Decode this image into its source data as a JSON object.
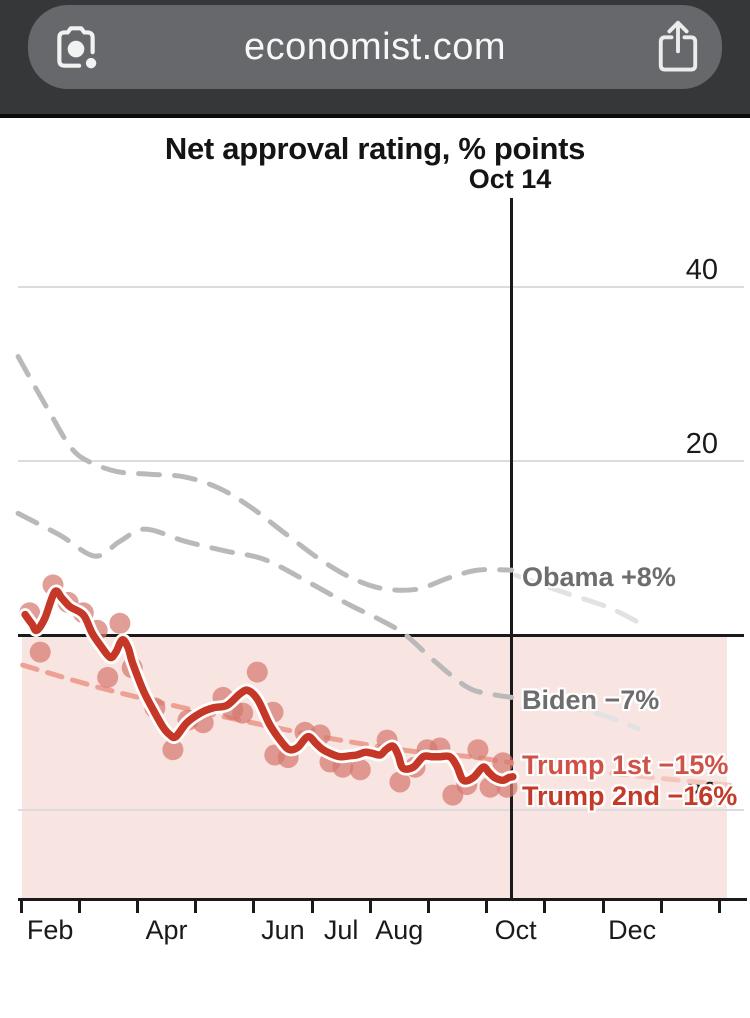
{
  "browser": {
    "url": "economist.com",
    "lens_icon": "google-lens-camera",
    "share_icon": "ios-share"
  },
  "chart": {
    "annotations": {
      "obama": {
        "text": "Obama +8%",
        "color": "#6d6d6d"
      },
      "biden": {
        "text": "Biden −7%",
        "color": "#6d6d6d"
      },
      "trump1": {
        "text": "Trump 1st −15%",
        "color": "#d05145"
      },
      "trump2": {
        "text": "Trump 2nd −16%",
        "color": "#c33a28"
      }
    },
    "colors": {
      "negative_region": "#f8e4e1",
      "gridline": "#dcdcdc",
      "axis": "#1a1a1a"
    }
  },
  "chart_data": {
    "type": "line",
    "title": "Net approval rating, % points",
    "annotation_vline": {
      "label": "Oct 14",
      "x_month": 10.43
    },
    "x_axis": {
      "unit": "month of first year in office (1 = Jan 1)",
      "range": [
        1.95,
        14.4
      ],
      "month_tick_xs": [
        2,
        3,
        4,
        5,
        6,
        7,
        8,
        9,
        10,
        11,
        12,
        13,
        14
      ],
      "labels": [
        [
          "Feb",
          2.5
        ],
        [
          "Apr",
          4.5
        ],
        [
          "Jun",
          6.5
        ],
        [
          "Jul",
          7.5
        ],
        [
          "Aug",
          8.5
        ],
        [
          "Oct",
          10.5
        ],
        [
          "Dec",
          12.5
        ]
      ]
    },
    "y_axis": {
      "unit": "net approval, % points",
      "range": [
        -30,
        50
      ],
      "gridlines": [
        40,
        20,
        -20
      ],
      "zero_line": 0,
      "tick_labels": [
        {
          "value": 40,
          "text": "40",
          "hidden": false
        },
        {
          "value": 20,
          "text": "20",
          "hidden": false
        },
        {
          "value": -20,
          "text": "20",
          "hidden": true,
          "note": "minus sign occluded by Trump 2nd label"
        }
      ],
      "negative_region_shaded": true
    },
    "series": [
      {
        "name": "obama-line",
        "label": "Obama",
        "final_value": 8,
        "style": "dashed",
        "color": "#b9b9b9",
        "points": [
          [
            1.95,
            32
          ],
          [
            2.2,
            29
          ],
          [
            2.5,
            25.5
          ],
          [
            2.85,
            21.6
          ],
          [
            3.15,
            20
          ],
          [
            3.65,
            18.8
          ],
          [
            4.2,
            18.5
          ],
          [
            4.8,
            18.2
          ],
          [
            5.4,
            16.9
          ],
          [
            5.95,
            14.7
          ],
          [
            6.5,
            11.9
          ],
          [
            7.1,
            8.9
          ],
          [
            7.65,
            6.7
          ],
          [
            8.2,
            5.4
          ],
          [
            8.8,
            5.3
          ],
          [
            9.35,
            6.6
          ],
          [
            9.85,
            7.5
          ],
          [
            10.43,
            7.5
          ]
        ]
      },
      {
        "name": "obama-line-after-oct14",
        "label": "Obama (rest of term)",
        "style": "dashed-faded",
        "color": "#e2e2e2",
        "points": [
          [
            10.5,
            6.9
          ],
          [
            11.3,
            5.0
          ],
          [
            12.1,
            3.2
          ],
          [
            12.75,
            1.0
          ]
        ]
      },
      {
        "name": "biden-line",
        "label": "Biden",
        "final_value": -7,
        "style": "dashed",
        "color": "#b9b9b9",
        "points": [
          [
            1.95,
            14.0
          ],
          [
            2.67,
            11.5
          ],
          [
            3.27,
            9.1
          ],
          [
            3.7,
            10.8
          ],
          [
            4.13,
            12.2
          ],
          [
            4.82,
            10.8
          ],
          [
            5.51,
            9.7
          ],
          [
            6.19,
            8.7
          ],
          [
            6.97,
            6.0
          ],
          [
            7.65,
            3.5
          ],
          [
            8.17,
            1.8
          ],
          [
            8.6,
            0.1
          ],
          [
            9.08,
            -2.8
          ],
          [
            9.66,
            -5.9
          ],
          [
            10.06,
            -6.7
          ],
          [
            10.43,
            -7.1
          ]
        ]
      },
      {
        "name": "biden-line-after-oct14",
        "label": "Biden (rest of term)",
        "style": "dashed-faded",
        "color": "#e2e2e2",
        "points": [
          [
            10.66,
            -7.4
          ],
          [
            11.43,
            -8.2
          ],
          [
            12.03,
            -9.2
          ],
          [
            12.6,
            -10.7
          ]
        ]
      },
      {
        "name": "trump1-line",
        "label": "Trump 1st",
        "final_value": -15,
        "style": "dashed-light",
        "color": "#eda094",
        "points": [
          [
            2.03,
            -3.4
          ],
          [
            3.36,
            -6.0
          ],
          [
            4.73,
            -8.2
          ],
          [
            6.11,
            -10.2
          ],
          [
            7.48,
            -12.0
          ],
          [
            8.86,
            -13.4
          ],
          [
            9.71,
            -13.9
          ],
          [
            10.43,
            -14.6
          ]
        ]
      },
      {
        "name": "trump1-line-after-oct14",
        "label": "Trump 1st (rest of term)",
        "style": "dashed-light-faded",
        "color": "#f4c6bd",
        "points": [
          [
            11.26,
            -15.2
          ],
          [
            12.29,
            -15.9
          ],
          [
            13.32,
            -16.6
          ],
          [
            14.35,
            -17.3
          ]
        ]
      },
      {
        "name": "trump2-poll-dots",
        "label": "Trump 2nd individual polls",
        "style": "scatter",
        "color": "#d6796f",
        "points": [
          [
            2.15,
            2.6
          ],
          [
            2.33,
            -1.9
          ],
          [
            2.55,
            5.8
          ],
          [
            2.81,
            3.8
          ],
          [
            3.07,
            2.6
          ],
          [
            3.31,
            0.6
          ],
          [
            3.49,
            -4.8
          ],
          [
            3.7,
            1.4
          ],
          [
            3.91,
            -3.7
          ],
          [
            4.3,
            -8.3
          ],
          [
            4.61,
            -13.1
          ],
          [
            4.87,
            -9.7
          ],
          [
            5.13,
            -10.0
          ],
          [
            5.47,
            -7.1
          ],
          [
            5.64,
            -8.5
          ],
          [
            5.81,
            -8.9
          ],
          [
            6.06,
            -4.2
          ],
          [
            6.33,
            -8.8
          ],
          [
            6.36,
            -13.7
          ],
          [
            6.59,
            -14.0
          ],
          [
            6.88,
            -11.1
          ],
          [
            7.14,
            -11.4
          ],
          [
            7.31,
            -14.5
          ],
          [
            7.53,
            -15.1
          ],
          [
            7.83,
            -15.4
          ],
          [
            8.29,
            -12.0
          ],
          [
            8.51,
            -16.8
          ],
          [
            8.77,
            -15.1
          ],
          [
            8.98,
            -13.1
          ],
          [
            9.2,
            -12.9
          ],
          [
            9.42,
            -18.3
          ],
          [
            9.66,
            -17.1
          ],
          [
            9.85,
            -13.1
          ],
          [
            10.06,
            -17.4
          ],
          [
            10.28,
            -14.6
          ],
          [
            10.35,
            -17.4
          ]
        ]
      },
      {
        "name": "trump2-line",
        "label": "Trump 2nd",
        "final_value": -16,
        "style": "solid-halo",
        "color": "#c53726",
        "points": [
          [
            2.07,
            2.4
          ],
          [
            2.19,
            1.3
          ],
          [
            2.27,
            0.6
          ],
          [
            2.41,
            2.0
          ],
          [
            2.58,
            5.0
          ],
          [
            2.7,
            4.3
          ],
          [
            2.84,
            3.3
          ],
          [
            3.01,
            2.7
          ],
          [
            3.1,
            2.1
          ],
          [
            3.22,
            0.3
          ],
          [
            3.36,
            -1.1
          ],
          [
            3.53,
            -2.5
          ],
          [
            3.63,
            -1.9
          ],
          [
            3.74,
            -0.5
          ],
          [
            3.84,
            -1.4
          ],
          [
            3.92,
            -3.2
          ],
          [
            4.1,
            -6.3
          ],
          [
            4.27,
            -8.5
          ],
          [
            4.44,
            -10.5
          ],
          [
            4.56,
            -11.4
          ],
          [
            4.66,
            -11.6
          ],
          [
            4.85,
            -10.0
          ],
          [
            5.08,
            -8.9
          ],
          [
            5.3,
            -8.3
          ],
          [
            5.54,
            -8.0
          ],
          [
            5.76,
            -6.7
          ],
          [
            5.9,
            -6.3
          ],
          [
            6.07,
            -7.4
          ],
          [
            6.28,
            -10.3
          ],
          [
            6.5,
            -12.4
          ],
          [
            6.62,
            -13.1
          ],
          [
            6.76,
            -12.8
          ],
          [
            6.93,
            -11.6
          ],
          [
            7.07,
            -12.4
          ],
          [
            7.19,
            -13.1
          ],
          [
            7.34,
            -13.6
          ],
          [
            7.48,
            -13.9
          ],
          [
            7.65,
            -13.8
          ],
          [
            7.77,
            -13.7
          ],
          [
            7.91,
            -13.4
          ],
          [
            8.03,
            -13.5
          ],
          [
            8.17,
            -13.7
          ],
          [
            8.27,
            -13.1
          ],
          [
            8.39,
            -12.7
          ],
          [
            8.48,
            -13.7
          ],
          [
            8.56,
            -15.2
          ],
          [
            8.74,
            -15.1
          ],
          [
            8.91,
            -13.9
          ],
          [
            9.06,
            -13.9
          ],
          [
            9.2,
            -13.9
          ],
          [
            9.37,
            -13.9
          ],
          [
            9.49,
            -15.0
          ],
          [
            9.6,
            -16.6
          ],
          [
            9.77,
            -16.3
          ],
          [
            9.94,
            -15.1
          ],
          [
            10.04,
            -15.7
          ],
          [
            10.14,
            -16.3
          ],
          [
            10.28,
            -16.6
          ],
          [
            10.38,
            -16.3
          ],
          [
            10.45,
            -16.2
          ]
        ]
      }
    ]
  }
}
